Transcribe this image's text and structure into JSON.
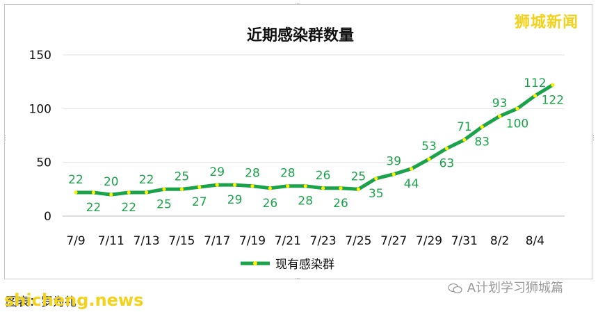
{
  "chart_data": {
    "type": "line",
    "title": "近期感染群数量",
    "categories": [
      "7/9",
      "7/10",
      "7/11",
      "7/12",
      "7/13",
      "7/14",
      "7/15",
      "7/16",
      "7/17",
      "7/18",
      "7/19",
      "7/20",
      "7/21",
      "7/22",
      "7/23",
      "7/24",
      "7/25",
      "7/26",
      "7/27",
      "7/28",
      "7/29",
      "7/30",
      "7/31",
      "8/1",
      "8/2",
      "8/3",
      "8/4",
      "8/5"
    ],
    "x_tick_labels": [
      "7/9",
      "7/11",
      "7/13",
      "7/15",
      "7/17",
      "7/19",
      "7/21",
      "7/23",
      "7/25",
      "7/27",
      "7/29",
      "7/31",
      "8/2",
      "8/4"
    ],
    "series": [
      {
        "name": "现有感染群",
        "values": [
          22,
          22,
          20,
          22,
          22,
          25,
          25,
          27,
          29,
          29,
          28,
          26,
          28,
          28,
          26,
          26,
          25,
          35,
          39,
          44,
          53,
          63,
          71,
          83,
          93,
          100,
          112,
          122
        ]
      }
    ],
    "ylim": [
      0,
      150
    ],
    "y_ticks": [
      0,
      50,
      100,
      150
    ],
    "grid": true,
    "legend_position": "bottom",
    "line_color": "#1aa34a",
    "marker_color": "#ffee00",
    "label_color": "#1aa34a"
  },
  "watermark_top": "狮城新闻",
  "source_text": "图表：罗为礼",
  "watermark_bottom": "shicheng.news",
  "wechat_text": "A计划学习狮城篇"
}
